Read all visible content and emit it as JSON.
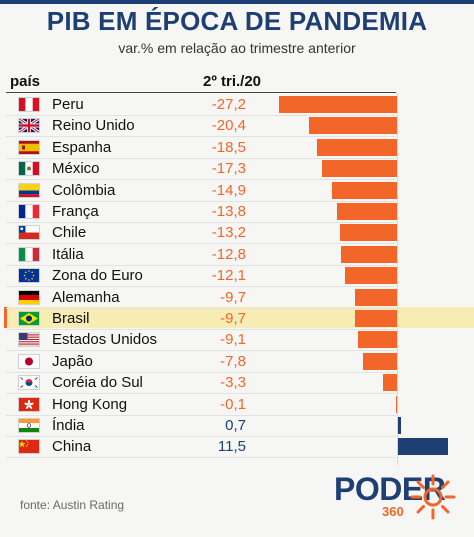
{
  "title": "PIB EM ÉPOCA DE PANDEMIA",
  "subtitle": "var.% em relação ao trimestre anterior",
  "columns": {
    "country": "país",
    "value": "2º tri./20"
  },
  "chart_data": {
    "type": "bar",
    "orientation": "horizontal",
    "title": "PIB EM ÉPOCA DE PANDEMIA",
    "subtitle": "var.% em relação ao trimestre anterior",
    "categories": [
      "Peru",
      "Reino Unido",
      "Espanha",
      "México",
      "Colômbia",
      "França",
      "Chile",
      "Itália",
      "Zona do Euro",
      "Alemanha",
      "Brasil",
      "Estados Unidos",
      "Japão",
      "Coréia do Sul",
      "Hong Kong",
      "Índia",
      "China"
    ],
    "values": [
      -27.2,
      -20.4,
      -18.5,
      -17.3,
      -14.9,
      -13.8,
      -13.2,
      -12.8,
      -12.1,
      -9.7,
      -9.7,
      -9.1,
      -7.8,
      -3.3,
      -0.1,
      0.7,
      11.5
    ],
    "value_labels": [
      "-27,2",
      "-20,4",
      "-18,5",
      "-17,3",
      "-14,9",
      "-13,8",
      "-13,2",
      "-12,8",
      "-12,1",
      "-9,7",
      "-9,7",
      "-9,1",
      "-7,8",
      "-3,3",
      "-0,1",
      "0,7",
      "11,5"
    ],
    "highlighted": "Brasil",
    "colors": {
      "negative": "#f3662a",
      "positive": "#1d3f73",
      "highlight_bg": "#f7ecb4"
    }
  },
  "rows": [
    {
      "name": "Peru",
      "value_label": "-27,2",
      "flag": "peru-flag"
    },
    {
      "name": "Reino Unido",
      "value_label": "-20,4",
      "flag": "uk-flag"
    },
    {
      "name": "Espanha",
      "value_label": "-18,5",
      "flag": "spain-flag"
    },
    {
      "name": "México",
      "value_label": "-17,3",
      "flag": "mexico-flag"
    },
    {
      "name": "Colômbia",
      "value_label": "-14,9",
      "flag": "colombia-flag"
    },
    {
      "name": "França",
      "value_label": "-13,8",
      "flag": "france-flag"
    },
    {
      "name": "Chile",
      "value_label": "-13,2",
      "flag": "chile-flag"
    },
    {
      "name": "Itália",
      "value_label": "-12,8",
      "flag": "italy-flag"
    },
    {
      "name": "Zona do Euro",
      "value_label": "-12,1",
      "flag": "eu-flag"
    },
    {
      "name": "Alemanha",
      "value_label": "-9,7",
      "flag": "germany-flag"
    },
    {
      "name": "Brasil",
      "value_label": "-9,7",
      "flag": "brazil-flag"
    },
    {
      "name": "Estados Unidos",
      "value_label": "-9,1",
      "flag": "usa-flag"
    },
    {
      "name": "Japão",
      "value_label": "-7,8",
      "flag": "japan-flag"
    },
    {
      "name": "Coréia do Sul",
      "value_label": "-3,3",
      "flag": "south-korea-flag"
    },
    {
      "name": "Hong Kong",
      "value_label": "-0,1",
      "flag": "hong-kong-flag"
    },
    {
      "name": "Índia",
      "value_label": "0,7",
      "flag": "india-flag"
    },
    {
      "name": "China",
      "value_label": "11,5",
      "flag": "china-flag"
    }
  ],
  "footer": {
    "source": "fonte: Austin Rating",
    "logo_word": "PODER",
    "logo_number": "360"
  },
  "colors": {
    "brand_blue": "#1d3f73",
    "brand_orange": "#f3662a"
  }
}
